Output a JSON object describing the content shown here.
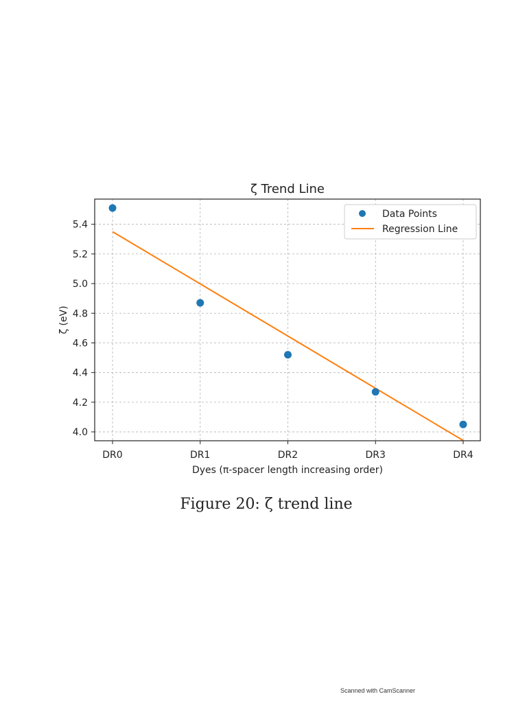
{
  "chart_data": {
    "type": "scatter",
    "title": "ζ Trend Line",
    "xlabel": "Dyes (π-spacer length increasing order)",
    "ylabel": "ζ (eV)",
    "categories": [
      "DR0",
      "DR1",
      "DR2",
      "DR3",
      "DR4"
    ],
    "yticks": [
      "4.0",
      "4.2",
      "4.4",
      "4.6",
      "4.8",
      "5.0",
      "5.2",
      "5.4"
    ],
    "ylim": [
      3.94,
      5.57
    ],
    "grid": true,
    "legend_position": "top-right",
    "series": [
      {
        "name": "Data Points",
        "kind": "scatter",
        "color": "#1f77b4",
        "values": [
          5.51,
          4.87,
          4.52,
          4.27,
          4.05
        ]
      },
      {
        "name": "Regression Line",
        "kind": "line",
        "color": "#ff7f0e",
        "values": [
          5.35,
          4.998,
          4.646,
          4.294,
          3.942
        ]
      }
    ]
  },
  "caption": "Figure 20: ζ trend line",
  "watermark": "Scanned with CamScanner"
}
